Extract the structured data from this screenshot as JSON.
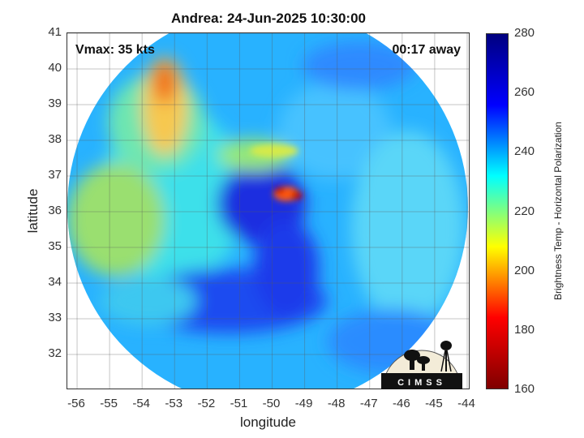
{
  "title": "Andrea: 24-Jun-2025 10:30:00",
  "vmax_label": "Vmax: 35 kts",
  "time_away": "00:17 away",
  "logo_text": "CIMSS",
  "chart_data": {
    "type": "heatmap",
    "title": "Andrea: 24-Jun-2025 10:30:00",
    "xlabel": "longitude",
    "ylabel": "latitude",
    "xlim": [
      -56.3,
      -43.9
    ],
    "ylim": [
      31,
      41
    ],
    "x_ticks": [
      "-56",
      "-55",
      "-54",
      "-53",
      "-52",
      "-51",
      "-50",
      "-49",
      "-48",
      "-47",
      "-46",
      "-45",
      "-44"
    ],
    "y_ticks": [
      "41",
      "40",
      "39",
      "38",
      "37",
      "36",
      "35",
      "34",
      "33",
      "32"
    ],
    "grid": true,
    "colorbar": {
      "label": "Brightness Temp - Horizontal Polarization",
      "range": [
        160,
        280
      ],
      "ticks": [
        "280",
        "260",
        "240",
        "220",
        "200",
        "180",
        "160"
      ],
      "colors": [
        "#7f0000",
        "#ff0000",
        "#ffff00",
        "#00ffff",
        "#0000ff",
        "#00007f"
      ]
    },
    "storm_center": {
      "lon": -50.2,
      "lat": 36.3
    }
  }
}
